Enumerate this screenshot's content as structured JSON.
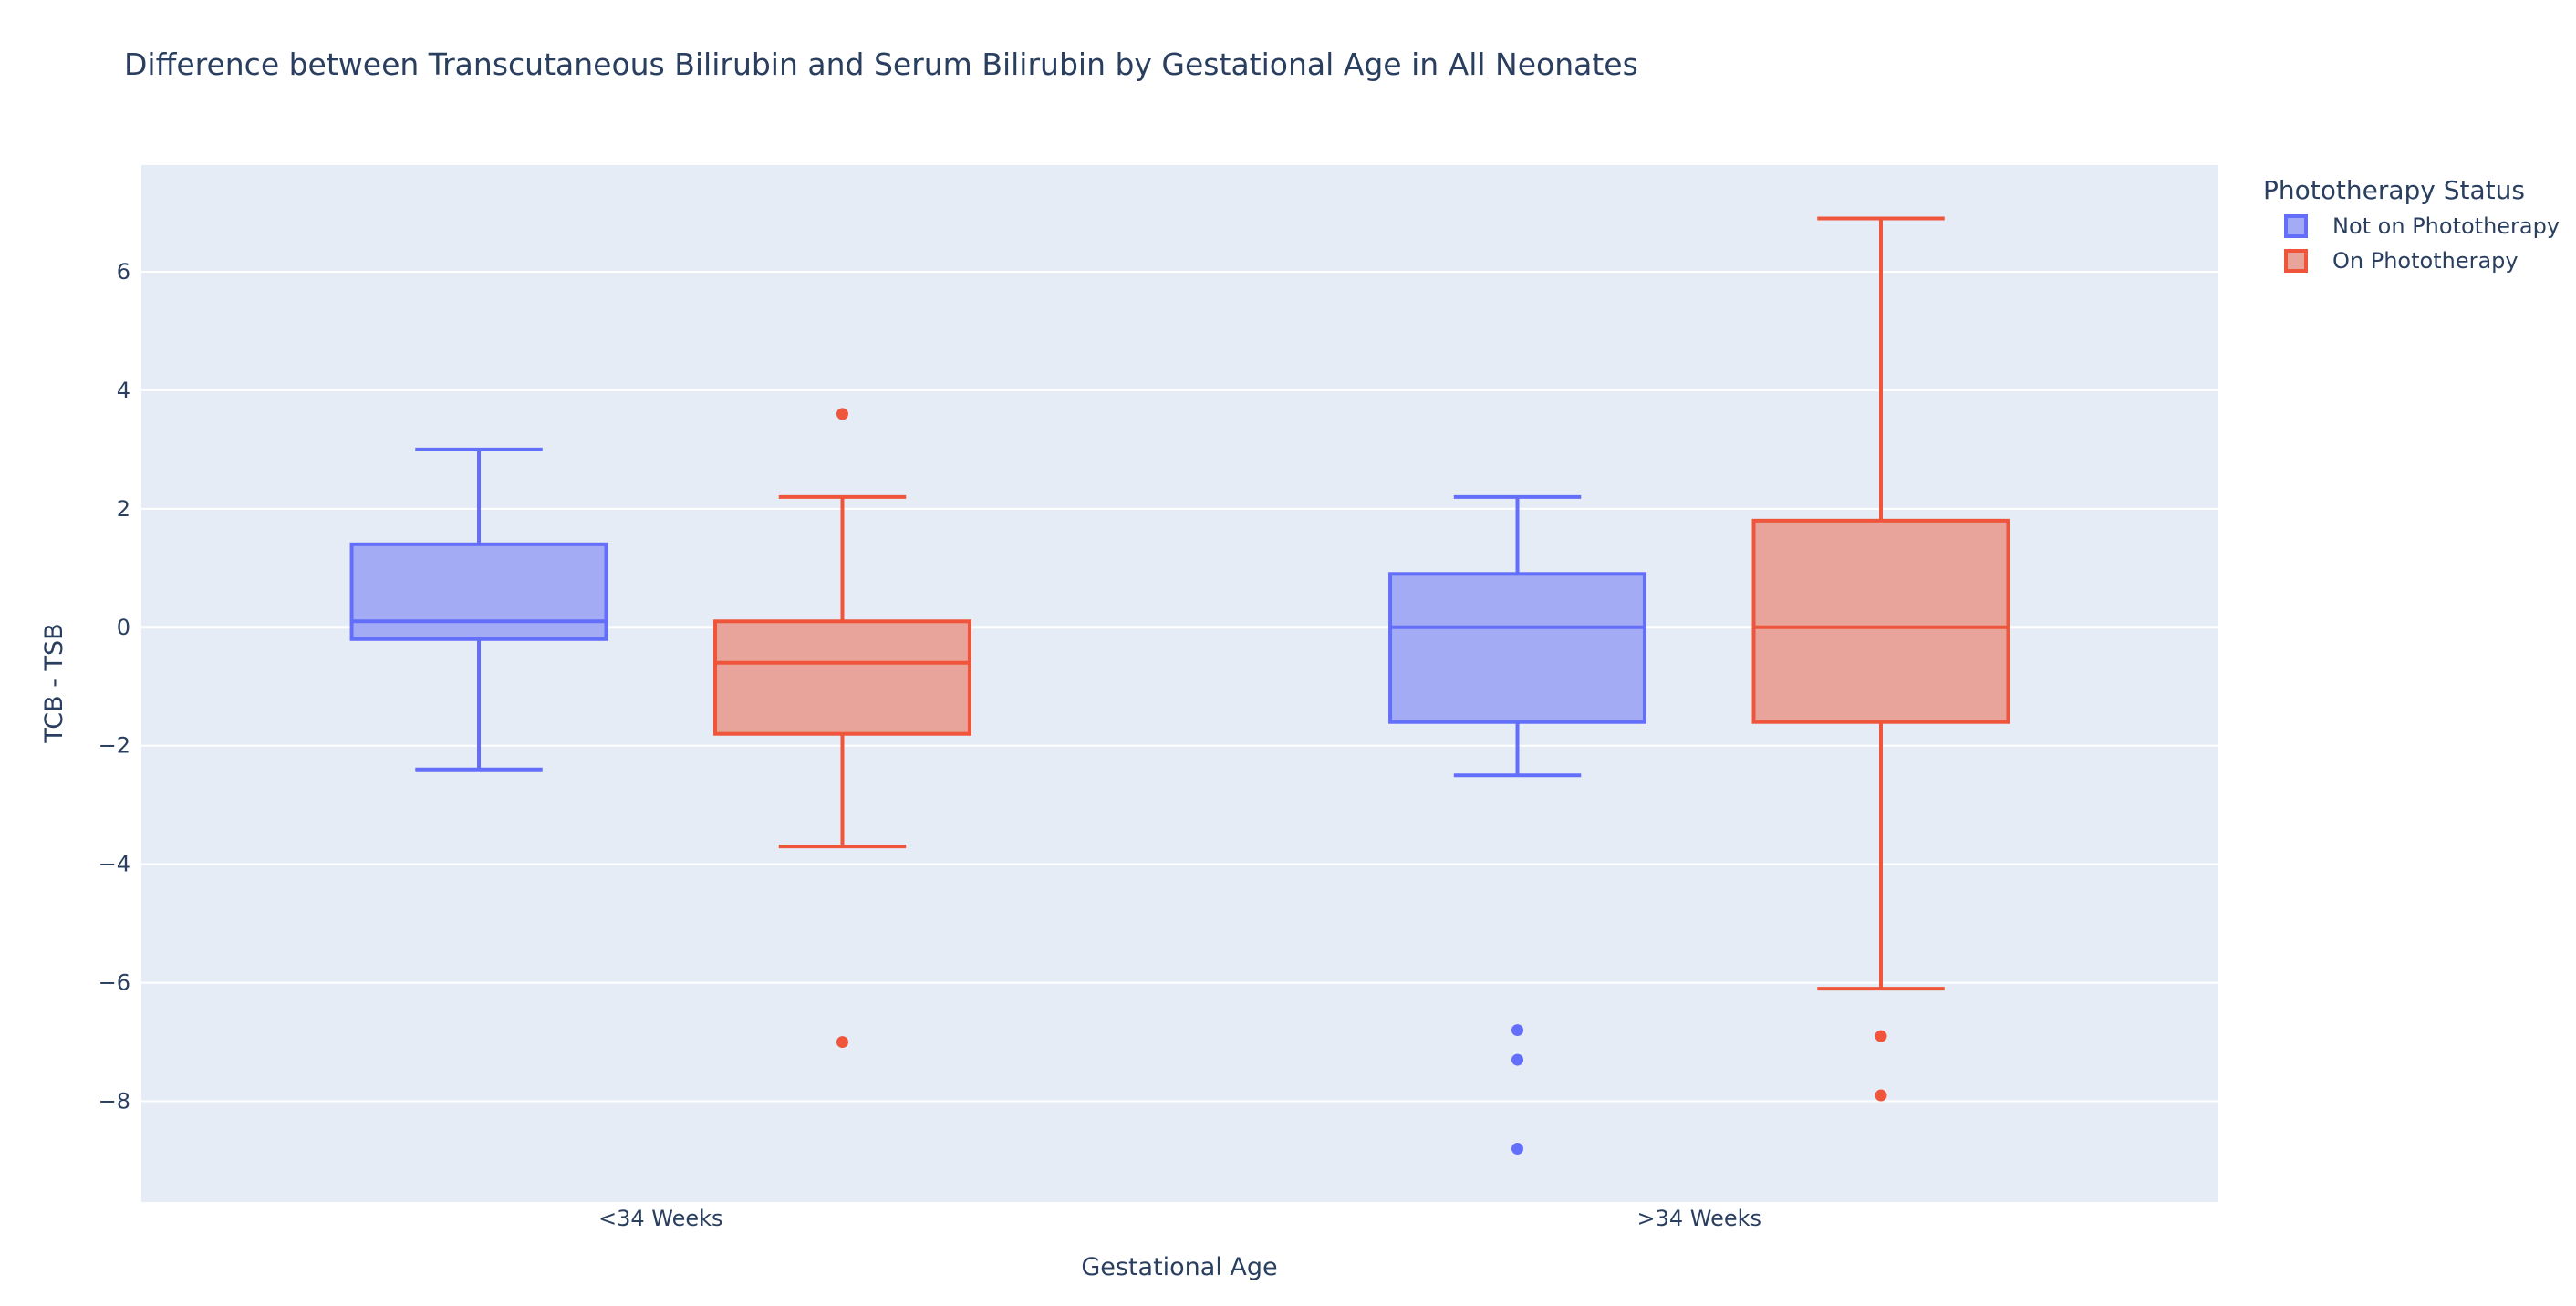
{
  "chart_data": {
    "type": "box",
    "title": "Difference between Transcutaneous Bilirubin and Serum Bilirubin by Gestational Age in All Neonates",
    "xlabel": "Gestational Age",
    "ylabel": "TCB - TSB",
    "categories": [
      "<34 Weeks",
      ">34 Weeks"
    ],
    "ylim": [
      -9.7,
      7.8
    ],
    "yticks": [
      -8,
      -6,
      -4,
      -2,
      0,
      2,
      4,
      6
    ],
    "grid": true,
    "legend": {
      "title": "Phototherapy Status",
      "placement": "top-right"
    },
    "series": [
      {
        "name": "Not on Phototherapy",
        "color": "#636efa",
        "fill": "#a4abf5",
        "boxes": [
          {
            "category": "<34 Weeks",
            "lower_whisker": -2.4,
            "q1": -0.2,
            "median": 0.1,
            "q3": 1.4,
            "upper_whisker": 3.0,
            "outliers": []
          },
          {
            "category": ">34 Weeks",
            "lower_whisker": -2.5,
            "q1": -1.6,
            "median": 0.0,
            "q3": 0.9,
            "upper_whisker": 2.2,
            "outliers": [
              -6.8,
              -7.3,
              -8.8
            ]
          }
        ]
      },
      {
        "name": "On Phototherapy",
        "color": "#ef553b",
        "fill": "#e8a39b",
        "boxes": [
          {
            "category": "<34 Weeks",
            "lower_whisker": -3.7,
            "q1": -1.8,
            "median": -0.6,
            "q3": 0.1,
            "upper_whisker": 2.2,
            "outliers": [
              3.6,
              -7.0
            ]
          },
          {
            "category": ">34 Weeks",
            "lower_whisker": -6.1,
            "q1": -1.6,
            "median": 0.0,
            "q3": 1.8,
            "upper_whisker": 6.9,
            "outliers": [
              -6.9,
              -7.9
            ]
          }
        ]
      }
    ]
  }
}
